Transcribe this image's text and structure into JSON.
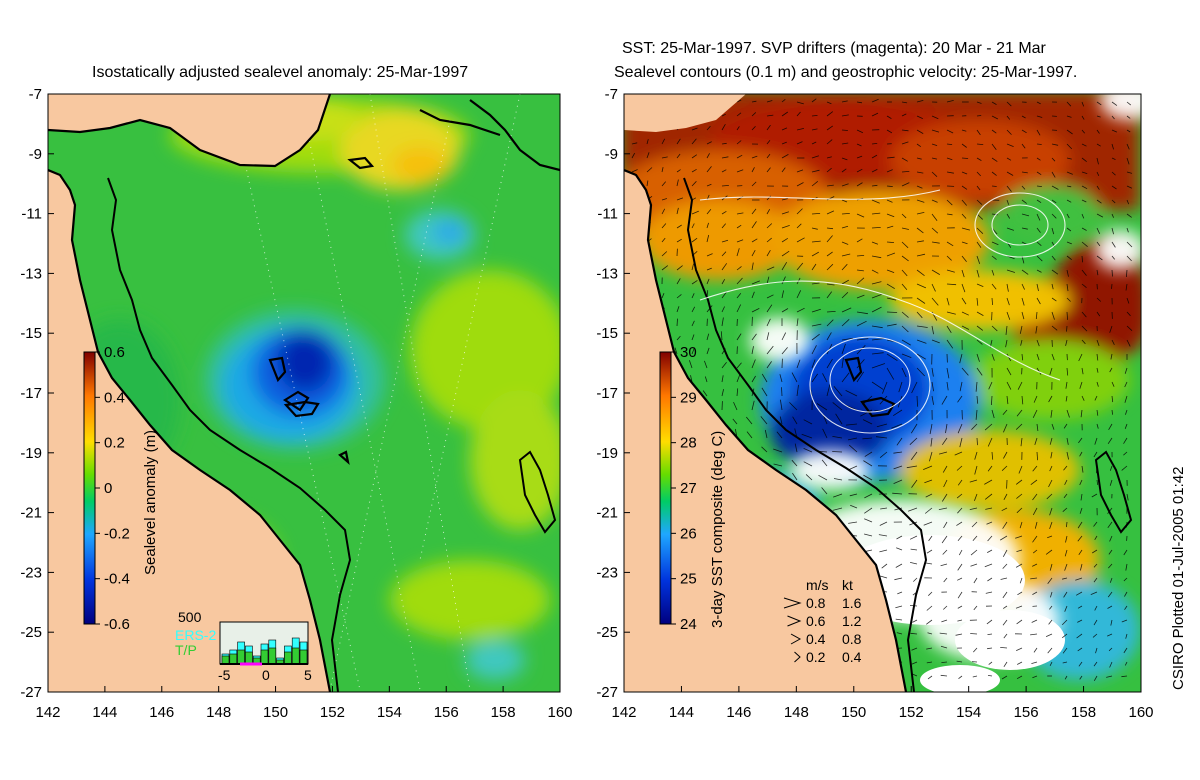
{
  "left_panel": {
    "title": "Isostatically adjusted sealevel anomaly: 25-Mar-1997",
    "colorbar": {
      "label": "Sealevel anomaly (m)",
      "ticks": [
        "0.6",
        "0.4",
        "0.2",
        "0",
        "-0.2",
        "-0.4",
        "-0.6"
      ]
    },
    "inset": {
      "ymax_label": "500",
      "series": [
        "ERS-2",
        "T/P"
      ],
      "x_ticks": [
        "-5",
        "0",
        "5"
      ],
      "ers2_color": "#33ffff",
      "tp_color": "#33cc33"
    }
  },
  "right_panel": {
    "title_line1": "SST: 25-Mar-1997. SVP drifters (magenta): 20 Mar - 21 Mar",
    "title_line2": "Sealevel contours (0.1 m) and geostrophic velocity: 25-Mar-1997.",
    "colorbar": {
      "label": "3-day SST composite (deg C)",
      "ticks": [
        "30",
        "29",
        "28",
        "27",
        "26",
        "25",
        "24"
      ]
    },
    "velocity_key": {
      "header_ms": "m/s",
      "header_kt": "kt",
      "rows": [
        {
          "ms": "0.8",
          "kt": "1.6"
        },
        {
          "ms": "0.6",
          "kt": "1.2"
        },
        {
          "ms": "0.4",
          "kt": "0.8"
        },
        {
          "ms": "0.2",
          "kt": "0.4"
        }
      ]
    }
  },
  "axes": {
    "lon_ticks": [
      "142",
      "144",
      "146",
      "148",
      "150",
      "152",
      "154",
      "156",
      "158",
      "160"
    ],
    "lat_ticks": [
      "-7",
      "-9",
      "-11",
      "-13",
      "-15",
      "-17",
      "-19",
      "-21",
      "-23",
      "-25",
      "-27"
    ]
  },
  "credit": "CSIRO Plotted 01-Jul-2005 01:42",
  "chart_data": {
    "type": "heatmap",
    "region": {
      "lon_range": [
        142,
        160
      ],
      "lat_range": [
        -27,
        -7
      ]
    },
    "date": "25-Mar-1997",
    "panels": [
      {
        "variable": "Sealevel anomaly (m)",
        "colorbar_range": [
          -0.6,
          0.6
        ]
      },
      {
        "variable": "3-day SST composite (deg C)",
        "colorbar_range": [
          24,
          30
        ]
      }
    ],
    "colors": {
      "land": "#f8c8a0",
      "low": "#00007f",
      "mid": "#00cc33",
      "high": "#800000"
    }
  }
}
